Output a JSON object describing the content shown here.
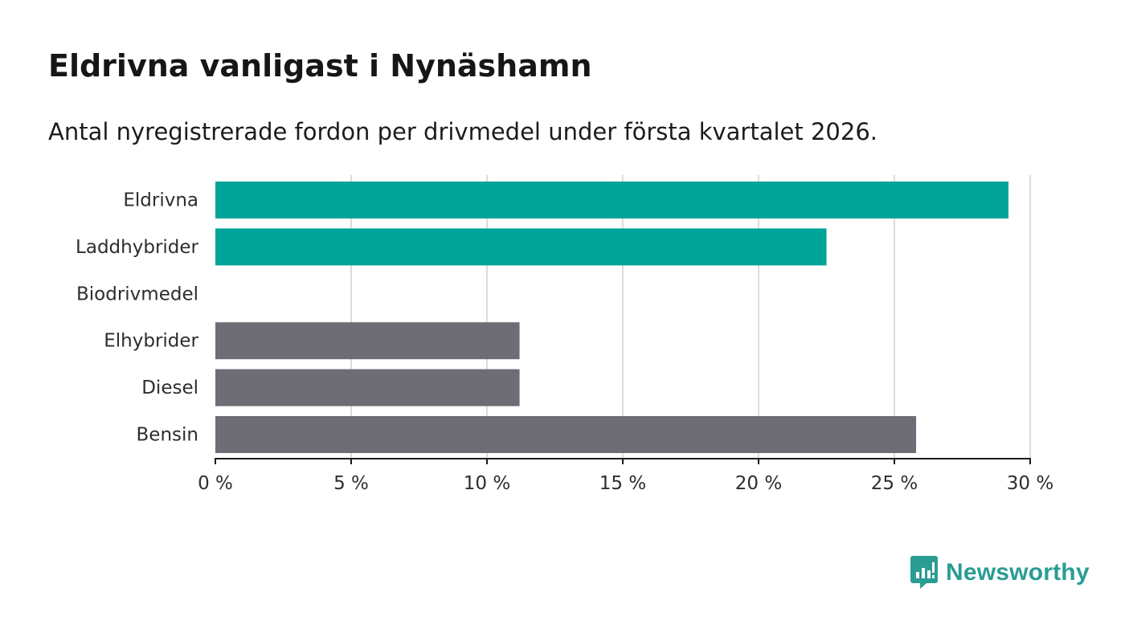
{
  "header": {
    "title": "Eldrivna vanligast i Nynäshamn",
    "subtitle": "Antal nyregistrerade fordon per drivmedel under första kvartalet 2026."
  },
  "chart_data": {
    "type": "bar",
    "orientation": "horizontal",
    "categories": [
      "Eldrivna",
      "Laddhybrider",
      "Biodrivmedel",
      "Elhybrider",
      "Diesel",
      "Bensin"
    ],
    "values": [
      29.2,
      22.5,
      0,
      11.2,
      11.2,
      25.8
    ],
    "bar_colors": [
      "#00a398",
      "#00a398",
      "#6e6d75",
      "#6e6d75",
      "#6e6d75",
      "#6e6d75"
    ],
    "xlim": [
      0,
      30
    ],
    "xticks": [
      0,
      5,
      10,
      15,
      20,
      25,
      30
    ],
    "xtick_labels": [
      "0 %",
      "5 %",
      "10 %",
      "15 %",
      "20 %",
      "25 %",
      "30 %"
    ],
    "xlabel": "",
    "ylabel": "",
    "grid": "vertical",
    "unit": "%"
  },
  "brand": {
    "name": "Newsworthy",
    "icon": "newsworthy-logo-icon",
    "color": "#2a9d93"
  }
}
